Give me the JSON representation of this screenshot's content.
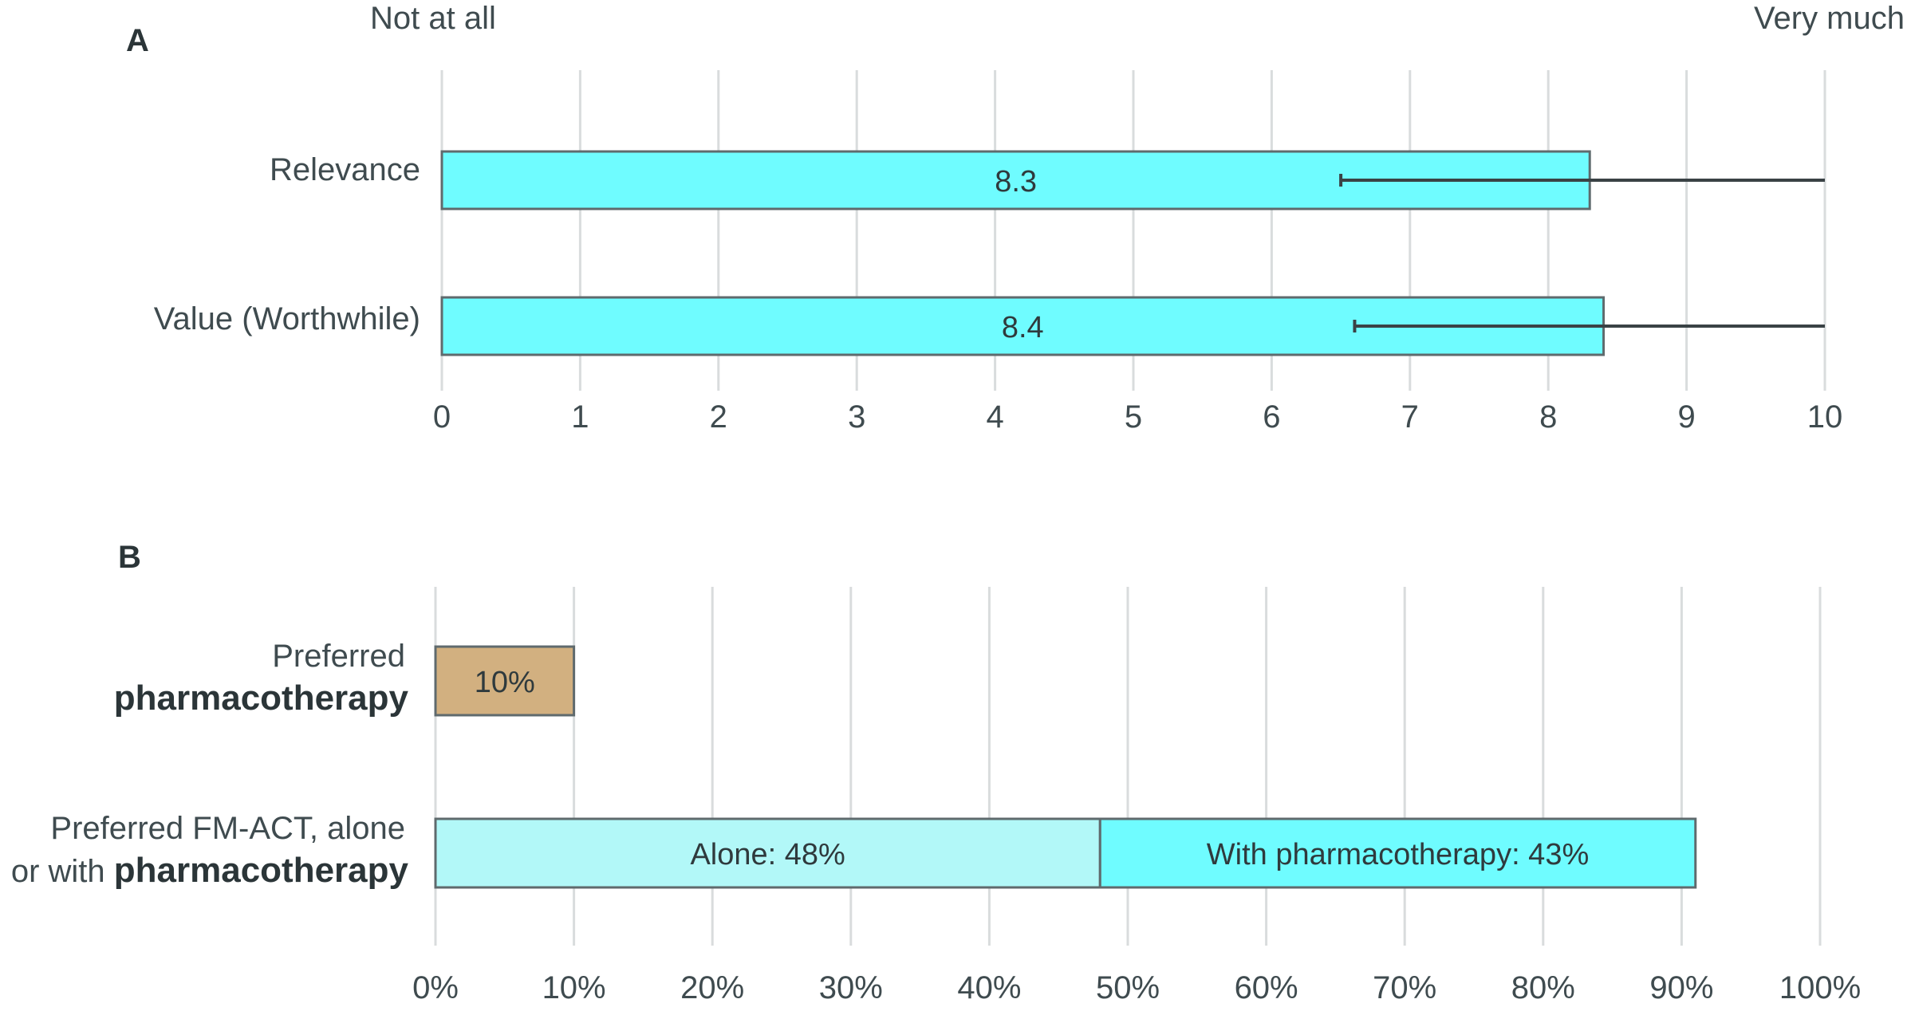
{
  "chart_data": [
    {
      "type": "bar",
      "orientation": "horizontal",
      "panel": "A",
      "anchor_left": "Not at all",
      "anchor_right": "Very much",
      "categories": [
        "Relevance",
        "Value (Worthwhile)"
      ],
      "values": [
        8.3,
        8.4
      ],
      "value_labels": [
        "8.3",
        "8.4"
      ],
      "error_low": [
        6.5,
        6.6
      ],
      "error_high": [
        10,
        10
      ],
      "xlim": [
        0,
        10
      ],
      "ticks": [
        "0",
        "1",
        "2",
        "3",
        "4",
        "5",
        "6",
        "7",
        "8",
        "9",
        "10"
      ],
      "grid": true,
      "bar_color": "#6ffcff",
      "bar_edge": "#5f6a6d",
      "error_color": "#3a4245"
    },
    {
      "type": "bar",
      "orientation": "horizontal",
      "stacked": true,
      "panel": "B",
      "categories": [
        {
          "line1": "Preferred",
          "line2_regular": "",
          "line2_bold": "pharmacotherapy"
        },
        {
          "line1": "Preferred FM-ACT, alone",
          "line2_regular": "or with ",
          "line2_bold": "pharmacotherapy"
        }
      ],
      "segments": [
        [
          {
            "value": 10,
            "label": "10%",
            "color": "#d2b080"
          }
        ],
        [
          {
            "value": 48,
            "label": "Alone: 48%",
            "color": "#b2f8f8"
          },
          {
            "value": 43,
            "label": "With pharmacotherapy: 43%",
            "color": "#6ffcff"
          }
        ]
      ],
      "xlim": [
        0,
        100
      ],
      "ticks": [
        "0%",
        "10%",
        "20%",
        "30%",
        "40%",
        "50%",
        "60%",
        "70%",
        "80%",
        "90%",
        "100%"
      ],
      "grid": true,
      "bar_edge": "#5f6a6d"
    }
  ]
}
